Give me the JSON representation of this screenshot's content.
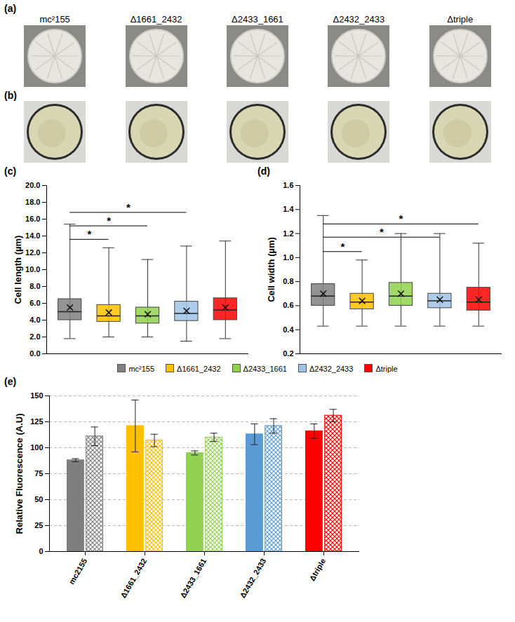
{
  "photo_panels": [
    {
      "panel": "(a)",
      "strains": [
        "mc²155",
        "Δ1661_2432",
        "Δ2433_1661",
        "Δ2432_2433",
        "Δtriple"
      ]
    },
    {
      "panel": "(b)"
    }
  ],
  "chart_data": [
    {
      "type": "box",
      "panel": "(c)",
      "y_label": "Cell length (µm)",
      "categories": [
        "mc²155",
        "Δ1661_2432",
        "Δ2433_1661",
        "Δ2432_2433",
        "Δtriple"
      ],
      "colors": [
        "#808080",
        "#ffc000",
        "#92d050",
        "#9dc3e6",
        "#ff0000"
      ],
      "boxes": [
        {
          "min": 1.8,
          "q1": 4.0,
          "median": 5.0,
          "q3": 6.5,
          "max": 15.4,
          "mean": 5.5
        },
        {
          "min": 2.0,
          "q1": 3.8,
          "median": 4.5,
          "q3": 5.8,
          "max": 12.6,
          "mean": 4.9
        },
        {
          "min": 2.0,
          "q1": 3.6,
          "median": 4.5,
          "q3": 5.5,
          "max": 11.2,
          "mean": 4.7
        },
        {
          "min": 1.5,
          "q1": 3.9,
          "median": 4.8,
          "q3": 6.2,
          "max": 12.8,
          "mean": 5.1
        },
        {
          "min": 1.8,
          "q1": 4.0,
          "median": 5.2,
          "q3": 6.6,
          "max": 13.4,
          "mean": 5.5
        }
      ],
      "marker": "x",
      "annotations": [
        {
          "text": "*",
          "from": "mc²155",
          "to": "Δ2432_2433",
          "y": 16.8
        },
        {
          "text": "*",
          "from": "mc²155",
          "to": "Δ2433_1661",
          "y": 15.2
        },
        {
          "text": "*",
          "from": "mc²155",
          "to": "Δ1661_2432",
          "y": 13.6
        }
      ],
      "ylim": [
        0,
        20
      ],
      "yticks": [
        {
          "value": 0,
          "label": "0.0"
        },
        {
          "value": 2,
          "label": "2.0"
        },
        {
          "value": 4,
          "label": "4.0"
        },
        {
          "value": 6,
          "label": "6.0"
        },
        {
          "value": 8,
          "label": "8.0"
        },
        {
          "value": 10,
          "label": "10.0"
        },
        {
          "value": 12,
          "label": "12.0"
        },
        {
          "value": 14,
          "label": "14.0"
        },
        {
          "value": 16,
          "label": "16.0"
        },
        {
          "value": 18,
          "label": "18.0"
        },
        {
          "value": 20,
          "label": "20.0"
        }
      ],
      "tick_labels": "y",
      "legend": "bottom"
    },
    {
      "type": "box",
      "panel": "(d)",
      "y_label": "Cell width (µm)",
      "categories": [
        "mc²155",
        "Δ1661_2432",
        "Δ2433_1661",
        "Δ2432_2433",
        "Δtriple"
      ],
      "colors": [
        "#808080",
        "#ffc000",
        "#92d050",
        "#9dc3e6",
        "#ff0000"
      ],
      "boxes": [
        {
          "min": 0.43,
          "q1": 0.6,
          "median": 0.68,
          "q3": 0.78,
          "max": 1.35,
          "mean": 0.7
        },
        {
          "min": 0.43,
          "q1": 0.57,
          "median": 0.63,
          "q3": 0.7,
          "max": 0.98,
          "mean": 0.64
        },
        {
          "min": 0.43,
          "q1": 0.6,
          "median": 0.68,
          "q3": 0.79,
          "max": 1.2,
          "mean": 0.7
        },
        {
          "min": 0.43,
          "q1": 0.58,
          "median": 0.64,
          "q3": 0.7,
          "max": 1.2,
          "mean": 0.65
        },
        {
          "min": 0.43,
          "q1": 0.56,
          "median": 0.63,
          "q3": 0.75,
          "max": 1.12,
          "mean": 0.65
        }
      ],
      "marker": "x",
      "annotations": [
        {
          "text": "*",
          "from": "mc²155",
          "to": "Δtriple",
          "y": 1.28
        },
        {
          "text": "*",
          "from": "mc²155",
          "to": "Δ2432_2433",
          "y": 1.17
        },
        {
          "text": "*",
          "from": "mc²155",
          "to": "Δ1661_2432",
          "y": 1.05
        }
      ],
      "ylim": [
        0.2,
        1.6
      ],
      "yticks": [
        0.2,
        0.4,
        0.6,
        0.8,
        {
          "value": 1,
          "label": "1.0"
        },
        1.2,
        1.4,
        1.6
      ],
      "tick_labels": "y"
    },
    {
      "type": "bar",
      "panel": "(e)",
      "y_label": "Relative Fluorescence (A.U)",
      "categories": [
        "mc2155",
        "Δ1661_2432",
        "Δ2433_1661",
        "Δ2432_2433",
        "Δtriple"
      ],
      "colors": [
        "#7f7f7f",
        "#ffc000",
        "#92d050",
        "#5b9bd5",
        "#ff0000"
      ],
      "series": [
        {
          "values": [
            88,
            121,
            95,
            113,
            116
          ],
          "errors": [
            1.5,
            25,
            2,
            10,
            7
          ]
        },
        {
          "values": [
            111,
            107,
            110,
            121,
            131
          ],
          "errors": [
            9,
            6,
            4,
            7,
            6
          ]
        }
      ],
      "ylim": [
        0,
        150
      ],
      "yticks": [
        0,
        25,
        50,
        75,
        100,
        125,
        150
      ],
      "grid": true
    }
  ]
}
